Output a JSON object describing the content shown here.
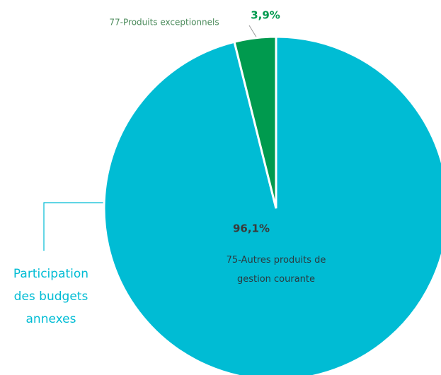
{
  "chart_data": {
    "type": "pie",
    "categories": [
      "75-Autres produits de gestion courante",
      "77-Produits exceptionnels"
    ],
    "values": [
      96.1,
      3.9
    ],
    "value_labels": [
      "96,1%",
      "3,9%"
    ],
    "colors": [
      "#00bcd4",
      "#009a4e"
    ],
    "annotation": "Participation des budgets annexes"
  }
}
